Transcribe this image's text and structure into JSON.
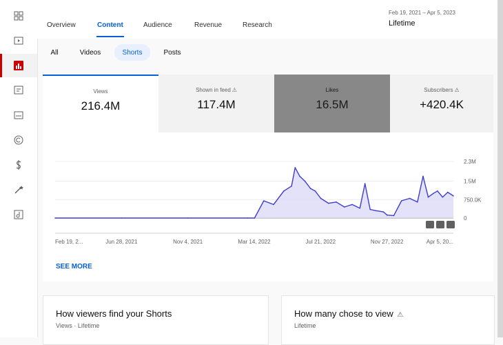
{
  "tabs": [
    {
      "label": "Overview"
    },
    {
      "label": "Content",
      "active": true
    },
    {
      "label": "Audience"
    },
    {
      "label": "Revenue"
    },
    {
      "label": "Research"
    }
  ],
  "date": {
    "range": "Feb 19, 2021 – Apr 5, 2023",
    "label": "Lifetime"
  },
  "chips": [
    {
      "label": "All"
    },
    {
      "label": "Videos"
    },
    {
      "label": "Shorts",
      "active": true
    },
    {
      "label": "Posts"
    }
  ],
  "metrics": [
    {
      "label": "Views",
      "value": "216.4M",
      "selected": true
    },
    {
      "label": "Shown in feed",
      "value": "117.4M",
      "warning": true
    },
    {
      "label": "Likes",
      "value": "16.5M"
    },
    {
      "label": "Subscribers",
      "value": "+420.4K",
      "warning": true
    }
  ],
  "chart_data": {
    "type": "area",
    "x_tick_labels": [
      "Feb 19, 2...",
      "Jun 28, 2021",
      "Nov 4, 2021",
      "Mar 14, 2022",
      "Jul 21, 2022",
      "Nov 27, 2022",
      "Apr 5, 20..."
    ],
    "y_tick_labels": [
      "2.3M",
      "1.5M",
      "750.0K",
      "0"
    ],
    "y_ticks": [
      2300000,
      1500000,
      750000,
      0
    ],
    "ylim": [
      0,
      2300000
    ],
    "x": [
      "2021-02-19",
      "2021-06-28",
      "2021-11-04",
      "2022-03-01",
      "2022-03-14",
      "2022-04-01",
      "2022-04-20",
      "2022-05-10",
      "2022-05-25",
      "2022-06-01",
      "2022-06-10",
      "2022-06-20",
      "2022-07-01",
      "2022-07-10",
      "2022-07-21",
      "2022-08-05",
      "2022-08-20",
      "2022-09-05",
      "2022-09-20",
      "2022-10-05",
      "2022-10-15",
      "2022-10-25",
      "2022-11-05",
      "2022-11-20",
      "2022-11-27",
      "2022-12-10",
      "2022-12-25",
      "2023-01-10",
      "2023-01-25",
      "2023-02-05",
      "2023-02-15",
      "2023-02-25",
      "2023-03-05",
      "2023-03-15",
      "2023-03-25",
      "2023-04-05"
    ],
    "series": [
      {
        "values": [
          0,
          0,
          0,
          0,
          0,
          700000,
          550000,
          1100000,
          1300000,
          2050000,
          1700000,
          1500000,
          1200000,
          1100000,
          800000,
          600000,
          650000,
          450000,
          550000,
          400000,
          1400000,
          350000,
          300000,
          250000,
          120000,
          100000,
          700000,
          800000,
          650000,
          1700000,
          850000,
          1000000,
          1100000,
          850000,
          1050000,
          900000
        ]
      }
    ],
    "annotation_icons": [
      "5s-icon",
      "5s-icon",
      "5s-icon"
    ],
    "colors": {
      "line": "#3c3bd6",
      "fill": "#dcdbf6"
    }
  },
  "see_more": "SEE MORE",
  "bottom_cards": [
    {
      "title": "How viewers find your Shorts",
      "subtitle": "Views · Lifetime"
    },
    {
      "title": "How many chose to view",
      "subtitle": "Lifetime",
      "warning": true
    }
  ]
}
